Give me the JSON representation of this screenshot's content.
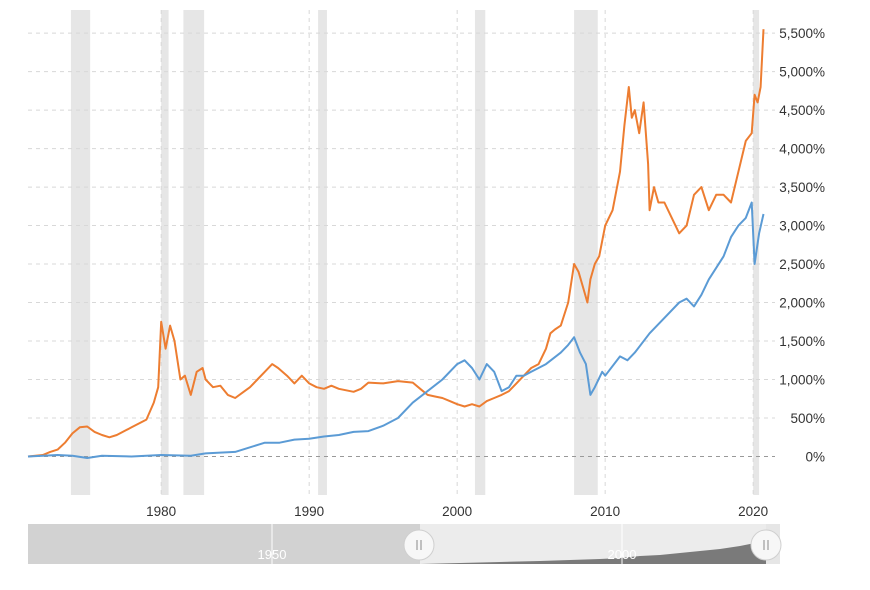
{
  "chart_data": {
    "type": "line",
    "title": "",
    "xlabel": "",
    "ylabel": "",
    "xlim": [
      1971,
      2020.8
    ],
    "ylim": [
      -500,
      5800
    ],
    "y_ticks": [
      0,
      500,
      1000,
      1500,
      2000,
      2500,
      3000,
      3500,
      4000,
      4500,
      5000,
      5500
    ],
    "y_tick_labels": [
      "0%",
      "500%",
      "1,000%",
      "1,500%",
      "2,000%",
      "2,500%",
      "3,000%",
      "3,500%",
      "4,000%",
      "4,500%",
      "5,000%",
      "5,500%"
    ],
    "x_ticks": [
      1980,
      1990,
      2000,
      2010,
      2020
    ],
    "x_tick_labels": [
      "1980",
      "1990",
      "2000",
      "2010",
      "2020"
    ],
    "grid": true,
    "legend": "none",
    "recessions": [
      [
        1973.9,
        1975.2
      ],
      [
        1980.0,
        1980.5
      ],
      [
        1981.5,
        1982.9
      ],
      [
        1990.6,
        1991.2
      ],
      [
        2001.2,
        2001.9
      ],
      [
        2007.9,
        2009.5
      ],
      [
        2020.0,
        2020.4
      ]
    ],
    "series": [
      {
        "color": "#ed7d31",
        "x": [
          1971.0,
          1972.0,
          1972.5,
          1973.0,
          1973.5,
          1974.0,
          1974.5,
          1975.0,
          1975.5,
          1976.0,
          1976.5,
          1977.0,
          1978.0,
          1979.0,
          1979.5,
          1979.8,
          1980.0,
          1980.3,
          1980.6,
          1980.9,
          1981.3,
          1981.6,
          1982.0,
          1982.4,
          1982.8,
          1983.0,
          1983.5,
          1984.0,
          1984.5,
          1985.0,
          1985.5,
          1986.0,
          1986.5,
          1987.0,
          1987.5,
          1987.9,
          1988.5,
          1989.0,
          1989.5,
          1990.0,
          1990.5,
          1991.0,
          1991.5,
          1992.0,
          1993.0,
          1993.5,
          1994.0,
          1995.0,
          1996.0,
          1997.0,
          1997.5,
          1998.0,
          1998.5,
          1999.0,
          1999.5,
          2000.0,
          2000.5,
          2001.0,
          2001.5,
          2002.0,
          2002.5,
          2003.0,
          2003.5,
          2004.0,
          2004.5,
          2005.0,
          2005.5,
          2006.0,
          2006.3,
          2006.6,
          2007.0,
          2007.5,
          2007.9,
          2008.2,
          2008.5,
          2008.8,
          2009.0,
          2009.3,
          2009.6,
          2010.0,
          2010.5,
          2011.0,
          2011.3,
          2011.6,
          2011.8,
          2012.0,
          2012.3,
          2012.6,
          2012.9,
          2013.0,
          2013.3,
          2013.6,
          2014.0,
          2014.5,
          2015.0,
          2015.5,
          2016.0,
          2016.5,
          2017.0,
          2017.5,
          2018.0,
          2018.5,
          2019.0,
          2019.5,
          2019.9,
          2020.1,
          2020.3,
          2020.5,
          2020.7
        ],
        "y": [
          0,
          20,
          60,
          90,
          180,
          300,
          380,
          390,
          320,
          280,
          250,
          280,
          380,
          480,
          700,
          900,
          1750,
          1400,
          1700,
          1500,
          1000,
          1050,
          800,
          1100,
          1150,
          1000,
          900,
          920,
          800,
          760,
          830,
          900,
          1000,
          1100,
          1200,
          1150,
          1050,
          950,
          1050,
          950,
          900,
          880,
          920,
          880,
          840,
          880,
          960,
          950,
          980,
          960,
          880,
          800,
          780,
          760,
          720,
          680,
          650,
          680,
          650,
          720,
          760,
          800,
          850,
          950,
          1050,
          1150,
          1200,
          1400,
          1600,
          1650,
          1700,
          2000,
          2500,
          2400,
          2200,
          2000,
          2300,
          2500,
          2600,
          3000,
          3200,
          3700,
          4300,
          4800,
          4400,
          4500,
          4200,
          4600,
          3800,
          3200,
          3500,
          3300,
          3300,
          3100,
          2900,
          3000,
          3400,
          3500,
          3200,
          3400,
          3400,
          3300,
          3700,
          4100,
          4200,
          4700,
          4600,
          4800,
          5550
        ]
      },
      {
        "color": "#5b9bd5",
        "x": [
          1971.0,
          1973.0,
          1974.0,
          1975.0,
          1976.0,
          1978.0,
          1980.0,
          1982.0,
          1983.0,
          1985.0,
          1986.0,
          1987.0,
          1988.0,
          1989.0,
          1990.0,
          1991.0,
          1992.0,
          1993.0,
          1994.0,
          1995.0,
          1996.0,
          1997.0,
          1998.0,
          1999.0,
          2000.0,
          2000.5,
          2001.0,
          2001.5,
          2002.0,
          2002.5,
          2003.0,
          2003.5,
          2004.0,
          2004.5,
          2005.0,
          2006.0,
          2007.0,
          2007.5,
          2007.9,
          2008.3,
          2008.7,
          2009.0,
          2009.3,
          2009.8,
          2010.0,
          2011.0,
          2011.5,
          2012.0,
          2013.0,
          2014.0,
          2015.0,
          2015.5,
          2016.0,
          2016.5,
          2017.0,
          2018.0,
          2018.5,
          2019.0,
          2019.5,
          2019.9,
          2020.1,
          2020.4,
          2020.7
        ],
        "y": [
          0,
          20,
          10,
          -20,
          10,
          0,
          20,
          10,
          40,
          60,
          120,
          180,
          180,
          220,
          230,
          260,
          280,
          320,
          330,
          400,
          500,
          700,
          850,
          1000,
          1200,
          1250,
          1150,
          1000,
          1200,
          1100,
          850,
          900,
          1050,
          1050,
          1100,
          1200,
          1350,
          1450,
          1550,
          1350,
          1200,
          800,
          900,
          1100,
          1050,
          1300,
          1250,
          1350,
          1600,
          1800,
          2000,
          2050,
          1950,
          2100,
          2300,
          2600,
          2850,
          3000,
          3100,
          3300,
          2500,
          2900,
          3150
        ]
      }
    ],
    "navigator": {
      "x_labels": [
        "1950",
        "2000"
      ]
    }
  }
}
